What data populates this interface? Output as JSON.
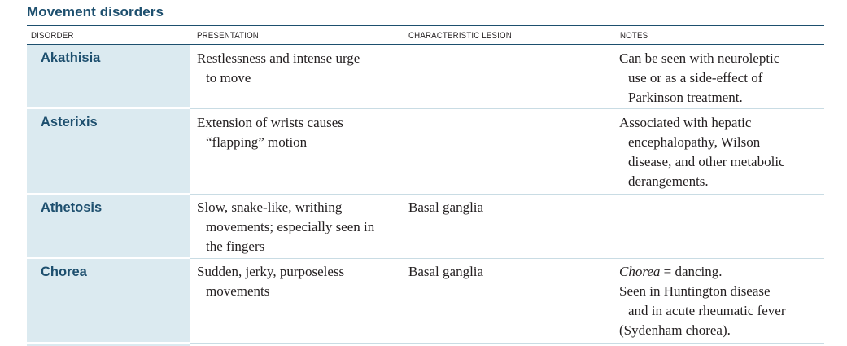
{
  "title": "Movement disorders",
  "headers": {
    "disorder": "DISORDER",
    "presentation": "PRESENTATION",
    "lesion": "CHARACTERISTIC LESION",
    "notes": "NOTES"
  },
  "rows": [
    {
      "name": "Akathisia",
      "presentation": [
        "Restlessness and intense urge",
        "to move"
      ],
      "lesion": "",
      "notes": [
        "Can be seen with neuroleptic",
        "use or as a side-effect of",
        "Parkinson treatment."
      ]
    },
    {
      "name": "Asterixis",
      "presentation": [
        "Extension of wrists causes",
        "“flapping” motion"
      ],
      "lesion": "",
      "notes": [
        "Associated with hepatic",
        "encephalopathy, Wilson",
        "disease, and other metabolic",
        "derangements."
      ]
    },
    {
      "name": "Athetosis",
      "presentation": [
        "Slow, snake-like, writhing",
        "movements; especially seen in",
        "the fingers"
      ],
      "lesion": "Basal ganglia",
      "notes": []
    },
    {
      "name": "Chorea",
      "presentation": [
        "Sudden, jerky, purposeless",
        "movements"
      ],
      "lesion": "Basal ganglia",
      "notes_italic": "Chorea",
      "notes": [
        " = dancing.",
        "Seen in Huntington disease",
        "and in acute rheumatic fever",
        "(Sydenham chorea)."
      ]
    }
  ]
}
